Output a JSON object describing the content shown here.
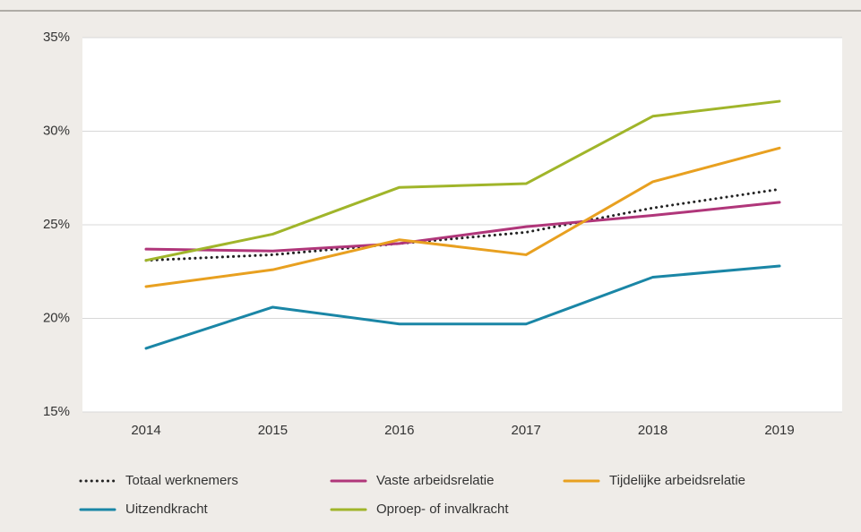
{
  "chart_data": {
    "type": "line",
    "categories": [
      "2014",
      "2015",
      "2016",
      "2017",
      "2018",
      "2019"
    ],
    "ylim": [
      15,
      35
    ],
    "yticks": [
      {
        "value": 15,
        "label": "15%"
      },
      {
        "value": 20,
        "label": "20%"
      },
      {
        "value": 25,
        "label": "25%"
      },
      {
        "value": 30,
        "label": "30%"
      },
      {
        "value": 35,
        "label": "35%"
      }
    ],
    "grid": true,
    "legend": "bottom",
    "series": [
      {
        "name": "Totaal werknemers",
        "color": "#222222",
        "dash": "dotted",
        "values": [
          23.1,
          23.4,
          24.0,
          24.6,
          25.9,
          26.9
        ]
      },
      {
        "name": "Vaste arbeidsrelatie",
        "color": "#b0367a",
        "values": [
          23.7,
          23.6,
          24.0,
          24.9,
          25.5,
          26.2
        ]
      },
      {
        "name": "Tijdelijke arbeidsrelatie",
        "color": "#e8a020",
        "values": [
          21.7,
          22.6,
          24.2,
          23.4,
          27.3,
          29.1
        ]
      },
      {
        "name": "Uitzendkracht",
        "color": "#1a86a6",
        "values": [
          18.4,
          20.6,
          19.7,
          19.7,
          22.2,
          22.8
        ]
      },
      {
        "name": "Oproep- of invalkracht",
        "color": "#a0b52a",
        "values": [
          23.1,
          24.5,
          27.0,
          27.2,
          30.8,
          31.6
        ]
      }
    ]
  }
}
